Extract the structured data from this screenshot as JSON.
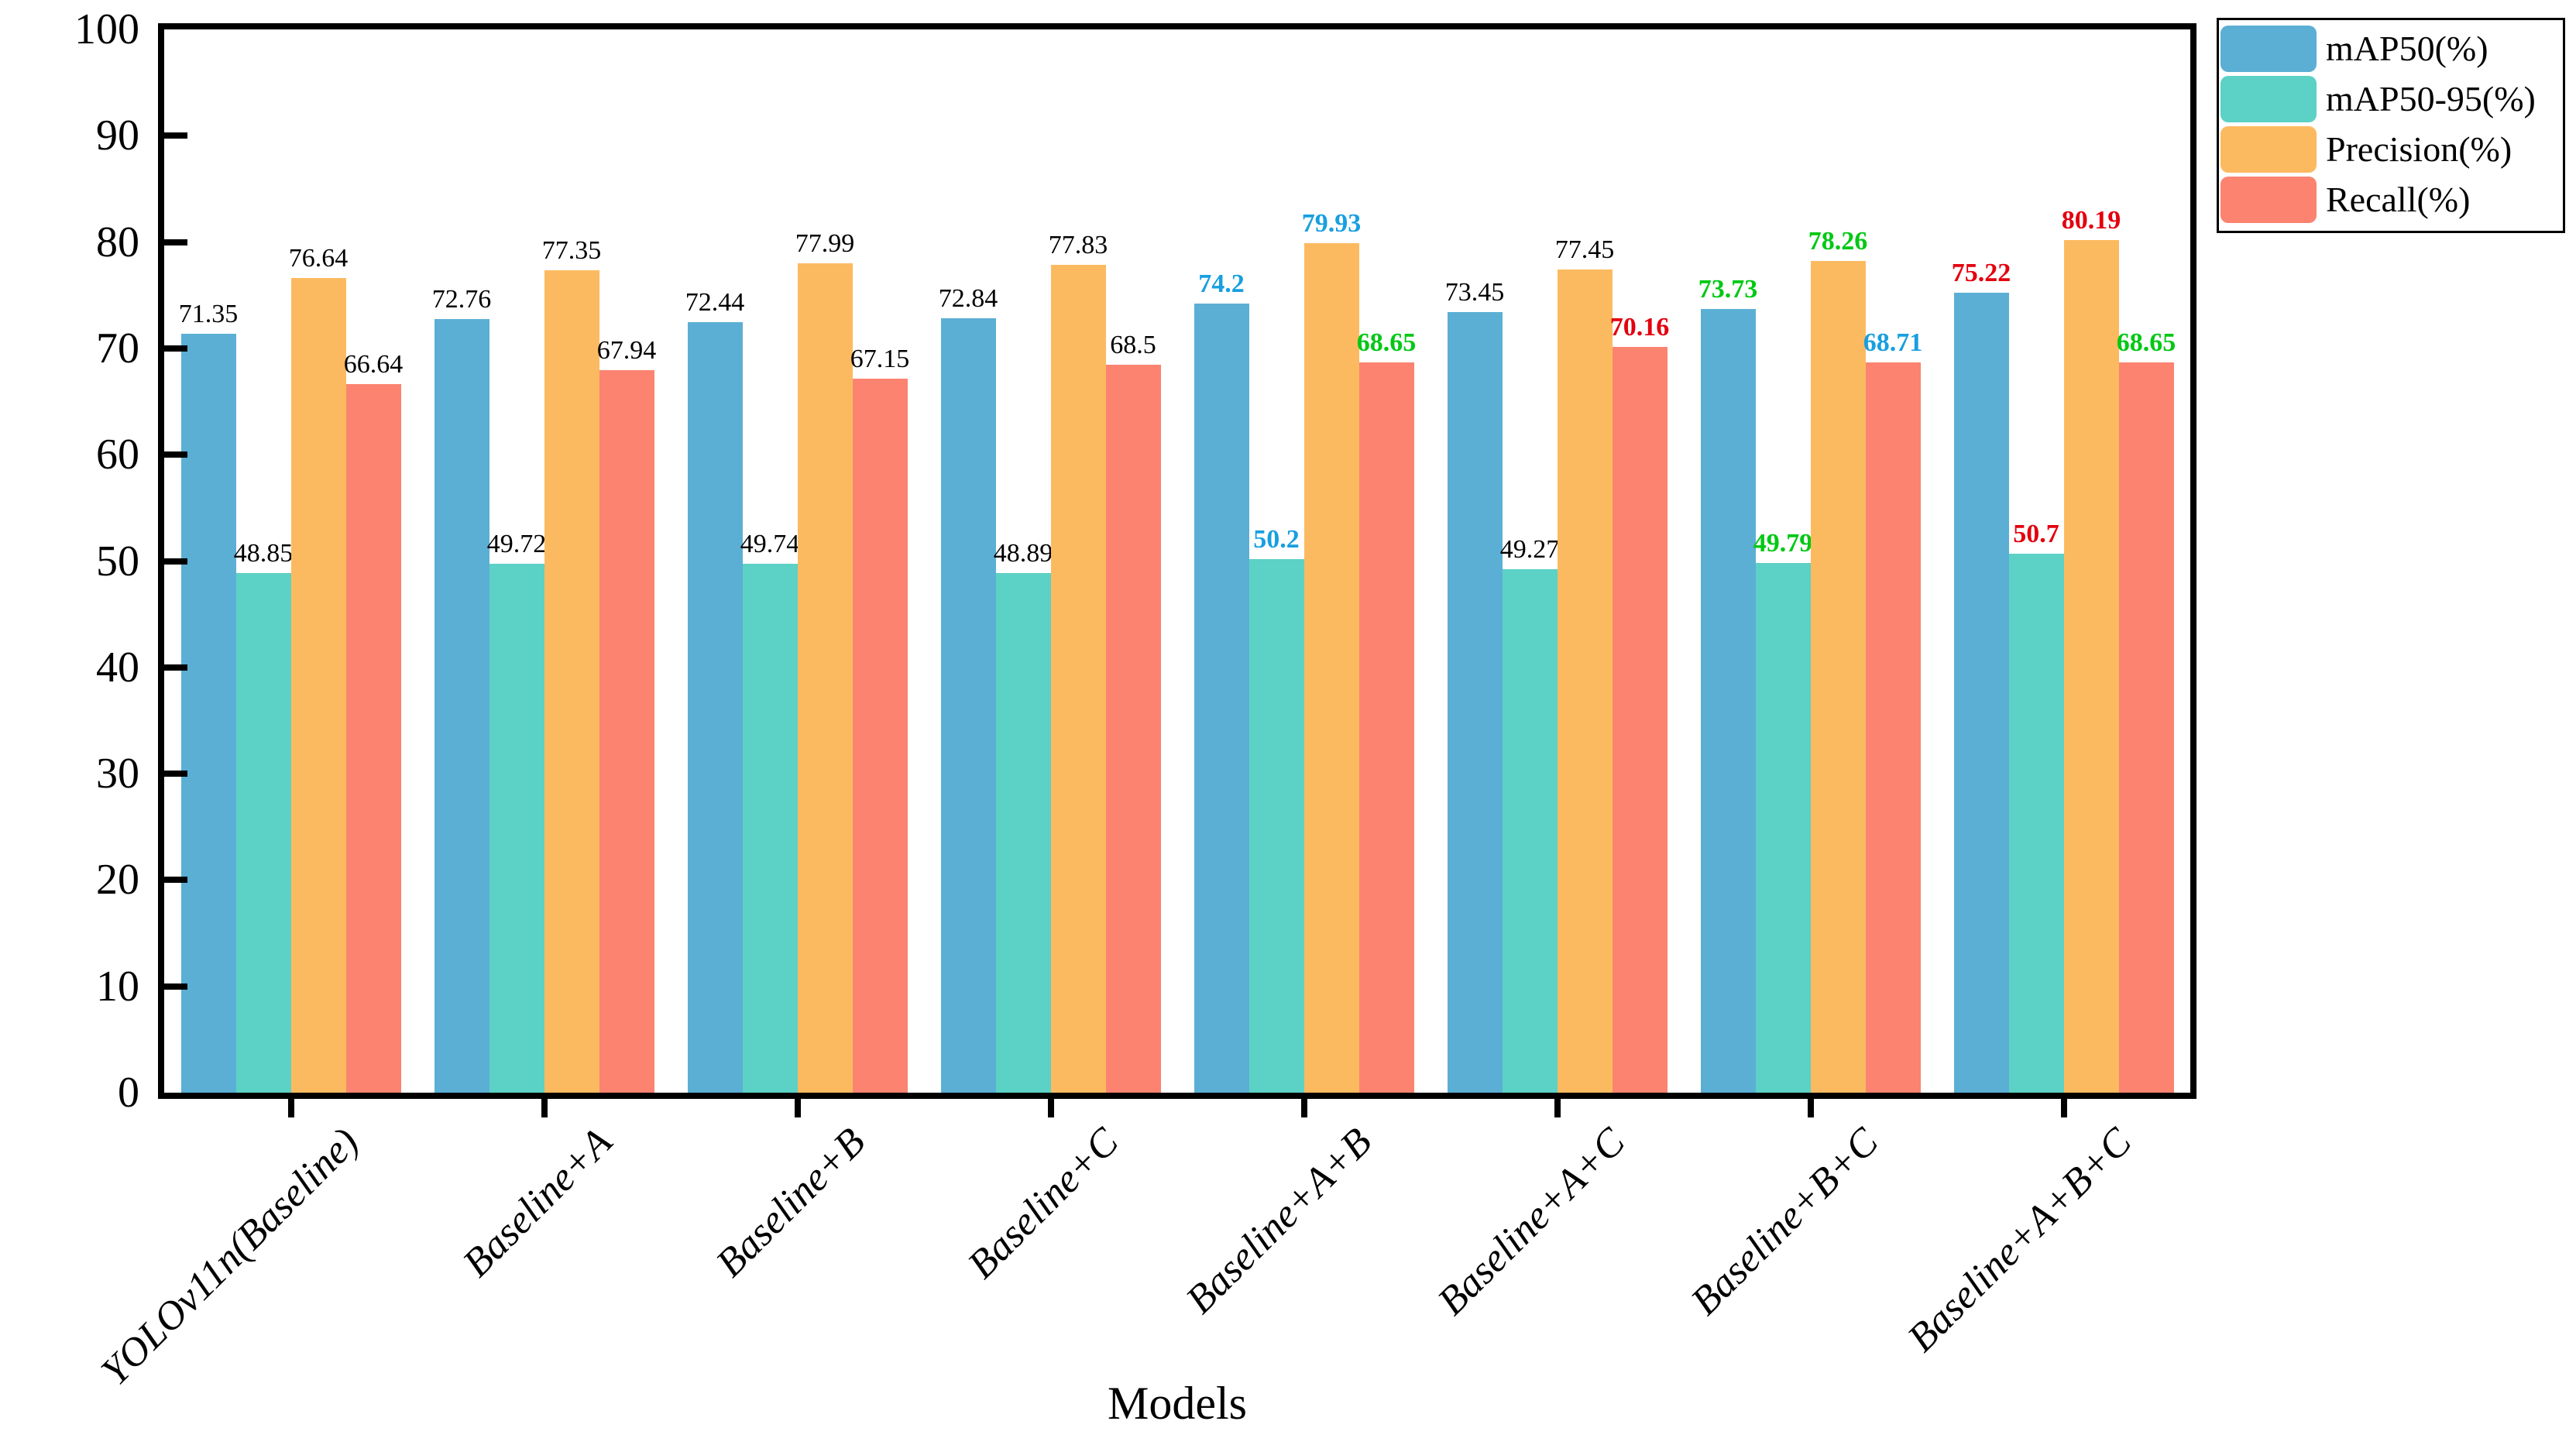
{
  "chart_data": {
    "type": "bar",
    "title": "",
    "xlabel": "Models",
    "ylabel": "",
    "ylim": [
      0,
      100
    ],
    "yticks": [
      0,
      10,
      20,
      30,
      40,
      50,
      60,
      70,
      80,
      90,
      100
    ],
    "grid": false,
    "legend_position": "outside-top-right",
    "bar_value_labels_shown": true,
    "categories": [
      "YOLOv11n(Baseline)",
      "Baseline+A",
      "Baseline+B",
      "Baseline+C",
      "Baseline+A+B",
      "Baseline+A+C",
      "Baseline+B+C",
      "Baseline+A+B+C"
    ],
    "series": [
      {
        "name": "mAP50(%)",
        "color": "#5BAFD4",
        "values": [
          71.35,
          72.76,
          72.44,
          72.84,
          74.2,
          73.45,
          73.73,
          75.22
        ],
        "label_colors": [
          "#000000",
          "#000000",
          "#000000",
          "#000000",
          "#189FE0",
          "#000000",
          "#00C814",
          "#E3000E"
        ]
      },
      {
        "name": "mAP50-95(%)",
        "color": "#5CD1C5",
        "values": [
          48.85,
          49.72,
          49.74,
          48.89,
          50.2,
          49.27,
          49.79,
          50.7
        ],
        "label_colors": [
          "#000000",
          "#000000",
          "#000000",
          "#000000",
          "#189FE0",
          "#000000",
          "#00C814",
          "#E3000E"
        ]
      },
      {
        "name": "Precision(%)",
        "color": "#FCBA60",
        "values": [
          76.64,
          77.35,
          77.99,
          77.83,
          79.93,
          77.45,
          78.26,
          80.19
        ],
        "label_colors": [
          "#000000",
          "#000000",
          "#000000",
          "#000000",
          "#189FE0",
          "#000000",
          "#00C814",
          "#E3000E"
        ]
      },
      {
        "name": "Recall(%)",
        "color": "#FB8370",
        "values": [
          66.64,
          67.94,
          67.15,
          68.5,
          68.65,
          70.16,
          68.71,
          68.65
        ],
        "label_colors": [
          "#000000",
          "#000000",
          "#000000",
          "#000000",
          "#00C814",
          "#E3000E",
          "#189FE0",
          "#00C814"
        ]
      }
    ]
  }
}
